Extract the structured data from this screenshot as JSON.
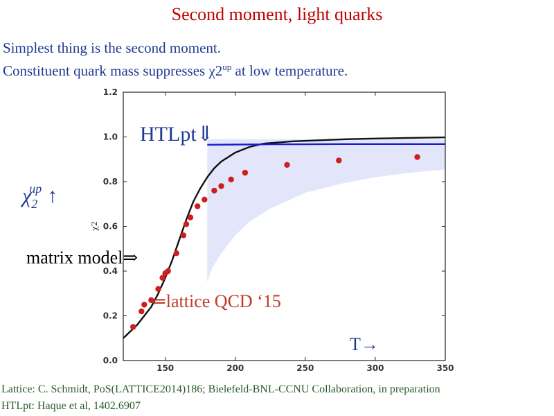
{
  "header": {
    "title": "Second moment, light quarks",
    "line1": "Simplest thing is the second moment.",
    "line2_pre": "Constituent quark mass suppresses χ2",
    "line2_sup": "up",
    "line2_post": " at low temperature."
  },
  "annotations": {
    "htlpt": "HTLpt⇓",
    "chi_sym": "χ",
    "chi_sub": "2",
    "chi_sup": "up",
    "chi_arrow": "↑",
    "matrix_model": "matrix model⇒",
    "lattice": "⇐lattice QCD ‘15",
    "t_axis": "T→"
  },
  "footer": {
    "line1": "Lattice: C. Schmidt,  PoS(LATTICE2014)186; Bielefeld-BNL-CCNU Collaboration, in preparation",
    "line2": "HTLpt: Haque et al, 1402.6907"
  },
  "colors": {
    "lattice_points": "#cc1f1f",
    "matrix_model_curve": "#111111",
    "htlpt_line": "#1a1ad0",
    "htlpt_band": "#e3e6fb"
  },
  "chart_data": {
    "type": "line",
    "xlim": [
      120,
      350
    ],
    "ylim": [
      0.0,
      1.2
    ],
    "x_ticks": [
      150,
      200,
      250,
      300,
      350
    ],
    "y_ticks": [
      0.0,
      0.2,
      0.4,
      0.6,
      0.8,
      1.0,
      1.2
    ],
    "x_tick_labels": [
      "150",
      "200",
      "250",
      "300",
      "350"
    ],
    "y_tick_labels": [
      "0.0",
      "0.2",
      "0.4",
      "0.6",
      "0.8",
      "1.0",
      "1.2"
    ],
    "ylabel": "χ2",
    "grid": false,
    "series": [
      {
        "kind": "scatter",
        "x": [
          127,
          133,
          135,
          140,
          145,
          148,
          150,
          152,
          158,
          163,
          165,
          168,
          173,
          178,
          185,
          190,
          197,
          207,
          237,
          274,
          330
        ],
        "y": [
          0.15,
          0.22,
          0.25,
          0.27,
          0.32,
          0.37,
          0.39,
          0.4,
          0.48,
          0.56,
          0.61,
          0.64,
          0.69,
          0.72,
          0.76,
          0.78,
          0.81,
          0.84,
          0.875,
          0.895,
          0.91
        ]
      },
      {
        "kind": "line",
        "x": [
          120,
          125,
          130,
          135,
          140,
          145,
          150,
          155,
          160,
          165,
          170,
          175,
          180,
          185,
          190,
          200,
          210,
          220,
          240,
          260,
          280,
          300,
          320,
          350
        ],
        "y": [
          0.1,
          0.13,
          0.16,
          0.2,
          0.24,
          0.3,
          0.37,
          0.45,
          0.54,
          0.63,
          0.71,
          0.77,
          0.82,
          0.86,
          0.89,
          0.93,
          0.955,
          0.97,
          0.98,
          0.985,
          0.99,
          0.993,
          0.995,
          0.998
        ]
      },
      {
        "kind": "line",
        "x": [
          180,
          200,
          225,
          250,
          275,
          300,
          325,
          350
        ],
        "y": [
          0.965,
          0.966,
          0.967,
          0.967,
          0.968,
          0.968,
          0.968,
          0.968
        ]
      },
      {
        "kind": "band",
        "x": [
          180,
          182,
          185,
          190,
          200,
          210,
          225,
          250,
          275,
          300,
          325,
          350
        ],
        "upper": [
          0.99,
          0.99,
          0.99,
          0.99,
          0.99,
          0.99,
          0.99,
          0.99,
          0.99,
          0.99,
          0.99,
          0.99
        ],
        "lower": [
          0.35,
          0.39,
          0.43,
          0.48,
          0.56,
          0.62,
          0.68,
          0.75,
          0.79,
          0.82,
          0.84,
          0.855
        ]
      }
    ]
  }
}
